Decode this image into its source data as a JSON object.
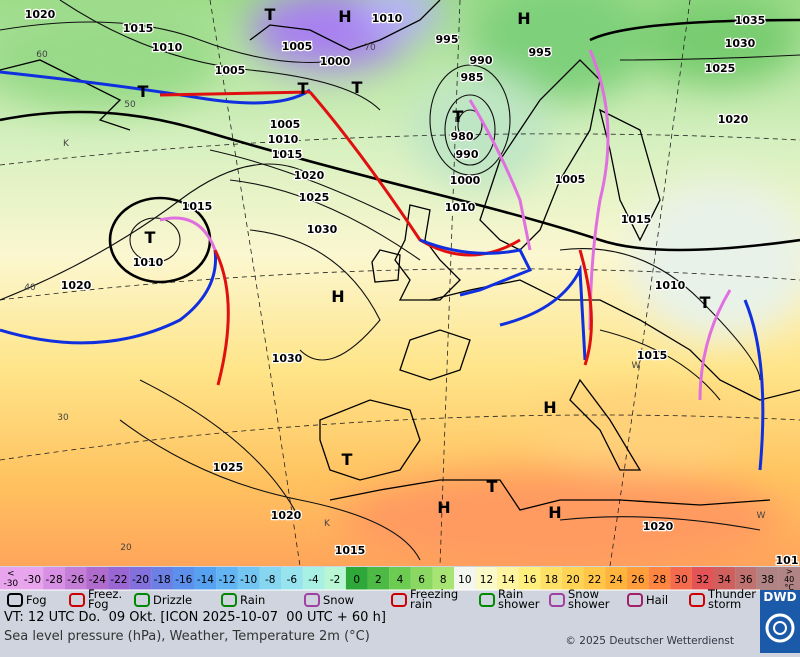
{
  "map": {
    "pressure_labels": [
      1020,
      1015,
      1010,
      1005,
      1000,
      1005,
      1010,
      995,
      990,
      985,
      995,
      1035,
      1030,
      1025,
      1020,
      980,
      990,
      1000,
      1010,
      1005,
      1005,
      1010,
      1015,
      1020,
      1025,
      1030,
      1015,
      1010,
      1020,
      1015,
      1010,
      1015,
      1030,
      1025,
      1020,
      1015,
      1020,
      101
    ],
    "centers": [
      "T",
      "H",
      "H",
      "T",
      "T",
      "T",
      "T",
      "T",
      "H",
      "T",
      "H",
      "T",
      "T",
      "H",
      "H"
    ],
    "temperature_labels": [
      "60",
      "50",
      "40",
      "30",
      "20",
      "70",
      "K",
      "K",
      "W",
      "W"
    ]
  },
  "legend": {
    "temperature_low": [
      "<",
      "-30"
    ],
    "temperatures": [
      -30,
      -28,
      -26,
      -24,
      -22,
      -20,
      -18,
      -16,
      -14,
      -12,
      -10,
      -8,
      -6,
      -4,
      -2,
      0,
      2,
      4,
      6,
      8,
      10,
      12,
      14,
      16,
      18,
      20,
      22,
      24,
      26,
      28,
      30,
      32,
      34,
      36,
      38
    ],
    "colors": [
      "#e8a4ec",
      "#d890e4",
      "#c47ed8",
      "#b06ccc",
      "#9a66d4",
      "#8270dc",
      "#6c80e4",
      "#5c90ec",
      "#56a2f0",
      "#62b4f2",
      "#74c6f2",
      "#86d6f0",
      "#98e4ee",
      "#a8f0e4",
      "#b8f6d4",
      "#2fa83a",
      "#4cba44",
      "#6ccc52",
      "#8ad862",
      "#a8e474",
      "#f4f6f0",
      "#fafac8",
      "#fff4a0",
      "#fff07e",
      "#ffe066",
      "#ffd454",
      "#ffc648",
      "#ffb43e",
      "#ff9e3a",
      "#ff8640",
      "#f46a4c",
      "#e45456",
      "#d0605e",
      "#c07270",
      "#b08484"
    ],
    "temperature_high": [
      ">",
      "40",
      "°C"
    ],
    "weather": [
      "Fog",
      "Freez. Fog",
      "Drizzle",
      "Rain",
      "Snow",
      "Freezing rain",
      "Rain shower",
      "Snow shower",
      "Hail",
      "Thunder storm"
    ]
  },
  "footer": {
    "valid_time": "VT: 12 UTC Do.  09 Okt. [ICON 2025-10-07  00 UTC + 60 h]",
    "product": "Sea level pressure (hPa), Weather, Temperature 2m (°C)",
    "copyright": "© 2025 Deutscher Wetterdienst",
    "logo": "DWD"
  }
}
